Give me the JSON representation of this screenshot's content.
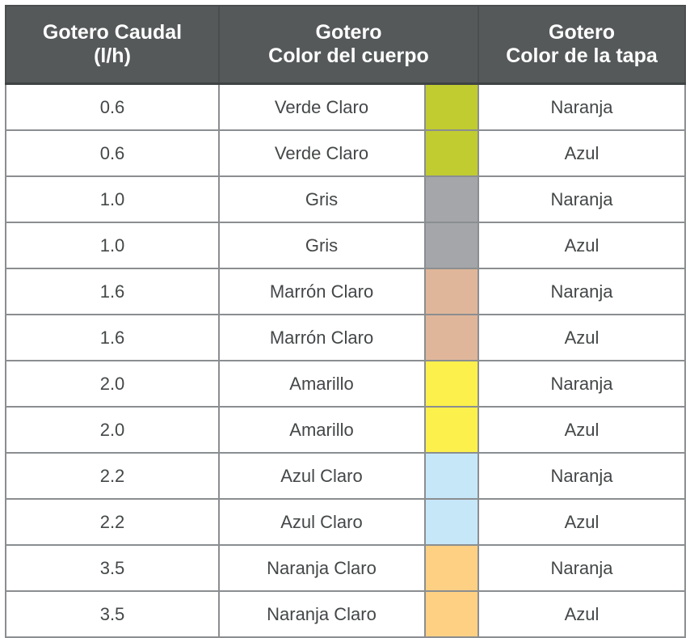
{
  "headers": {
    "flow_line1": "Gotero Caudal",
    "flow_line2": "(l/h)",
    "body_line1": "Gotero",
    "body_line2": "Color del cuerpo",
    "cap_line1": "Gotero",
    "cap_line2": "Color de la tapa"
  },
  "rows": [
    {
      "flow": "0.6",
      "body": "Verde Claro",
      "swatch": "#c0cc30",
      "cap": "Naranja"
    },
    {
      "flow": "0.6",
      "body": "Verde Claro",
      "swatch": "#c0cc30",
      "cap": "Azul"
    },
    {
      "flow": "1.0",
      "body": "Gris",
      "swatch": "#a4a6a9",
      "cap": "Naranja"
    },
    {
      "flow": "1.0",
      "body": "Gris",
      "swatch": "#a4a6a9",
      "cap": "Azul"
    },
    {
      "flow": "1.6",
      "body": "Marrón Claro",
      "swatch": "#e0b69a",
      "cap": "Naranja"
    },
    {
      "flow": "1.6",
      "body": "Marrón Claro",
      "swatch": "#e0b69a",
      "cap": "Azul"
    },
    {
      "flow": "2.0",
      "body": "Amarillo",
      "swatch": "#fbf04c",
      "cap": "Naranja"
    },
    {
      "flow": "2.0",
      "body": "Amarillo",
      "swatch": "#fbf04c",
      "cap": "Azul"
    },
    {
      "flow": "2.2",
      "body": "Azul Claro",
      "swatch": "#c6e7f8",
      "cap": "Naranja"
    },
    {
      "flow": "2.2",
      "body": "Azul Claro",
      "swatch": "#c6e7f8",
      "cap": "Azul"
    },
    {
      "flow": "3.5",
      "body": "Naranja Claro",
      "swatch": "#fdd083",
      "cap": "Naranja"
    },
    {
      "flow": "3.5",
      "body": "Naranja Claro",
      "swatch": "#fdd083",
      "cap": "Azul"
    }
  ]
}
